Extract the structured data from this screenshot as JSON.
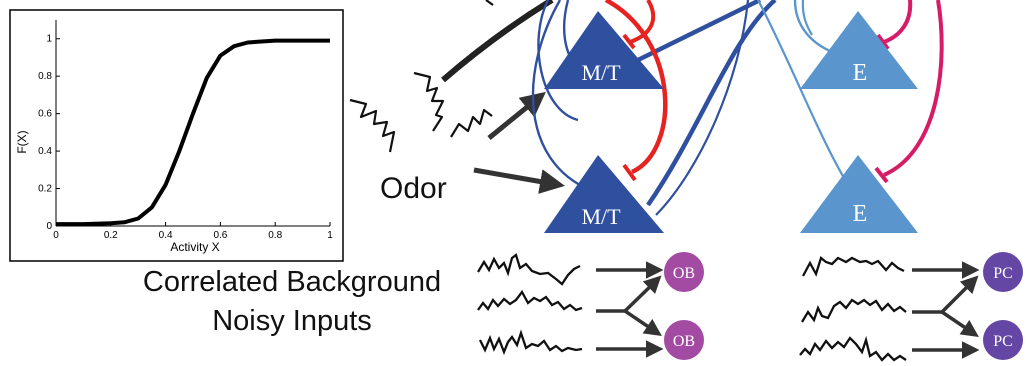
{
  "figure": {
    "odor_label": "Odor",
    "background_label_line1": "Correlated Background",
    "background_label_line2": "Noisy Inputs",
    "cells": {
      "mitral_tufted": "M/T",
      "excitatory": "E"
    },
    "output_nodes": {
      "ob": "OB",
      "pc": "PC"
    },
    "colors": {
      "mt_cell": "#2f4f9f",
      "e_cell": "#5b95cd",
      "ob_node": "#a34aa2",
      "pc_node": "#6446a4",
      "inhibition_red": "#e52421",
      "inhibition_pink": "#d61c66",
      "arrow": "#333333"
    }
  },
  "chart_data": {
    "type": "line",
    "xlabel": "Activity X",
    "ylabel": "F(X)",
    "xlim": [
      0,
      1
    ],
    "ylim": [
      0,
      1.1
    ],
    "x_ticks": [
      "0",
      "0.2",
      "0.4",
      "0.6",
      "0.8",
      "1"
    ],
    "y_ticks": [
      "0",
      "0.2",
      "0.4",
      "0.6",
      "0.8",
      "1"
    ],
    "grid": false,
    "series": [
      {
        "x": [
          0,
          0.1,
          0.2,
          0.25,
          0.3,
          0.35,
          0.4,
          0.45,
          0.5,
          0.55,
          0.6,
          0.65,
          0.7,
          0.75,
          0.8,
          0.9,
          1
        ],
        "values": [
          0.01,
          0.01,
          0.015,
          0.02,
          0.04,
          0.1,
          0.22,
          0.4,
          0.6,
          0.79,
          0.91,
          0.96,
          0.98,
          0.985,
          0.99,
          0.99,
          0.99
        ]
      }
    ]
  }
}
